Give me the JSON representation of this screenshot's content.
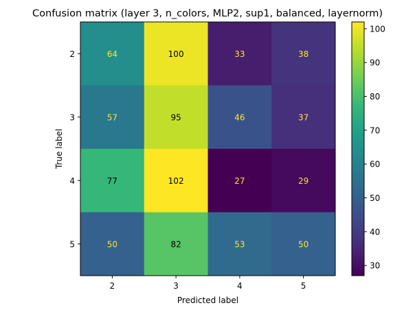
{
  "chart_data": {
    "type": "heatmap",
    "title": "Confusion matrix (layer 3, n_colors, MLP2, sup1, balanced, layernorm)",
    "xlabel": "Predicted label",
    "ylabel": "True label",
    "x_categories": [
      "2",
      "3",
      "4",
      "5"
    ],
    "y_categories": [
      "2",
      "3",
      "4",
      "5"
    ],
    "values": [
      [
        64,
        100,
        33,
        38
      ],
      [
        57,
        95,
        46,
        37
      ],
      [
        77,
        102,
        27,
        29
      ],
      [
        50,
        82,
        53,
        50
      ]
    ],
    "colorscale": "viridis",
    "vmin": 27,
    "vmax": 102,
    "colorbar_ticks": [
      30,
      40,
      50,
      60,
      70,
      80,
      90,
      100
    ],
    "grid": false,
    "text_colors": {
      "on_dark": "#fde725",
      "on_light": "#000000"
    }
  }
}
